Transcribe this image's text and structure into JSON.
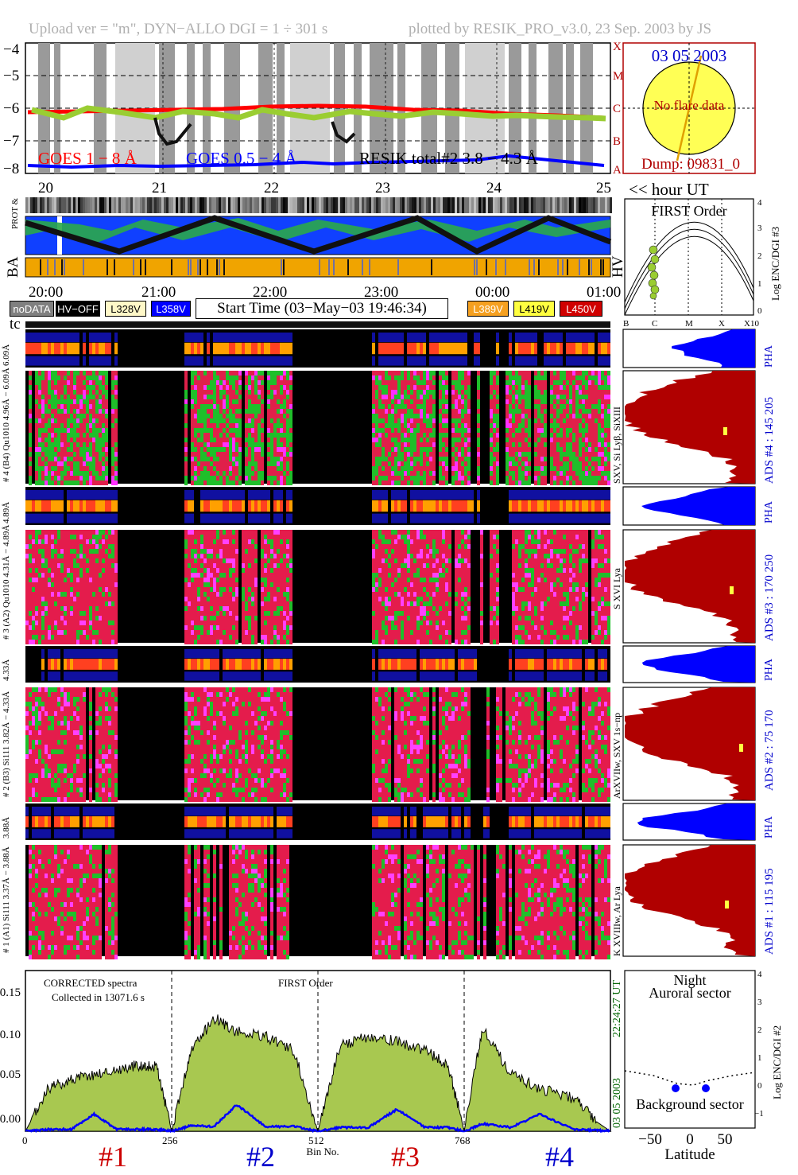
{
  "header": {
    "left": "Upload ver = \"m\", DYN−ALLO DGI =   1 ÷ 301 s",
    "right": "plotted by RESIK_PRO_v3.0, 23 Sep. 2003 by JS"
  },
  "goes_panel": {
    "y_ticks": [
      "−4",
      "−5",
      "−6",
      "−7",
      "−8"
    ],
    "class_letters": [
      "X",
      "M",
      "C",
      "B",
      "A"
    ],
    "legend_goes1": "GOES 1 − 8 Å",
    "legend_goes05": "GOES 0.5 − 4 Å",
    "legend_resik": "RESIK total#2  3.8 − 4.3 Å",
    "colors": {
      "goes1": "#ff0000",
      "goes05": "#0000ff",
      "resik": "#9acd32"
    }
  },
  "sun_panel": {
    "date": "03 05 2003",
    "flare": "No flare data",
    "dump": "Dump: 09831_0"
  },
  "orbit_panel": {
    "hour_ticks": [
      "20",
      "21",
      "22",
      "23",
      "24",
      "25"
    ],
    "hour_label": "<< hour UT",
    "labels": [
      "PROT & EL",
      "BA",
      "HV"
    ]
  },
  "time_axis": {
    "ticks": [
      "20:00",
      "21:00",
      "22:00",
      "23:00",
      "00:00",
      "01:00"
    ],
    "start_time": "Start Time (03−May−03 19:46:34)"
  },
  "legend_boxes": [
    {
      "label": "noDATA",
      "bg": "#808080",
      "fg": "#ffffff"
    },
    {
      "label": "HV−OFF",
      "bg": "#000000",
      "fg": "#ffffff"
    },
    {
      "label": "L328V",
      "bg": "#fff8c8",
      "fg": "#000000"
    },
    {
      "label": "L358V",
      "bg": "#0000ff",
      "fg": "#ffffff"
    },
    {
      "label": "L389V",
      "bg": "#f5a020",
      "fg": "#ffffff"
    },
    {
      "label": "L419V",
      "bg": "#ffff40",
      "fg": "#000000"
    },
    {
      "label": "L450V",
      "bg": "#d00000",
      "fg": "#ffffff"
    }
  ],
  "first_order_panel": {
    "title": "FIRST Order",
    "y_ticks": [
      "4",
      "3",
      "2",
      "1",
      "0"
    ],
    "x_ticks": [
      "B",
      "C",
      "M",
      "X",
      "X10"
    ],
    "ylabel": "Log ENC/DGI #3"
  },
  "spectrogram": {
    "tc_label": "tc",
    "channels": [
      {
        "pha_label": "6.09Å",
        "main_label": "# 4 (B4) Qu1010 4.96Å − 6.09Å",
        "line_label": "SXV, Si Lyβ, SiXIII",
        "ads": "ADS #4 :   145 205",
        "pha": "PHA"
      },
      {
        "pha_label": "4.89Å",
        "main_label": "# 3 (A2) Qu1010 4.31Å − 4.89Å",
        "line_label": "S XVI Lya",
        "ads": "ADS #3 :   170 250",
        "pha": "PHA"
      },
      {
        "pha_label": "4.33Å",
        "main_label": "# 2 (B3) Si111 3.82Å − 4.33Å",
        "line_label": "ArXVIIw, SXV 1s−np",
        "ads": "ADS #2 :   75 170",
        "pha": "PHA"
      },
      {
        "pha_label": "3.88Å",
        "main_label": "# 1 (A1) Si111 3.37Å − 3.88Å",
        "line_label": "K XVIIIw, Ar Lya",
        "ads": "ADS #1 :   115 195",
        "pha": "PHA"
      }
    ]
  },
  "spectra_panel": {
    "note1": "CORRECTED spectra",
    "note2": "Collected in 13071.6 s",
    "order": "FIRST Order",
    "utc": "22:24:27 UT",
    "date": "03 05 2003",
    "xlabel": "Bin No.",
    "x_ticks": [
      "0",
      "256",
      "512",
      "768"
    ],
    "y_ticks": [
      "0.00",
      "0.05",
      "0.10",
      "0.15"
    ],
    "channel_marks": [
      {
        "label": "#1",
        "color": "#cc0000"
      },
      {
        "label": "#2",
        "color": "#0000cc"
      },
      {
        "label": "#3",
        "color": "#cc0000"
      },
      {
        "label": "#4",
        "color": "#0000cc"
      }
    ]
  },
  "latitude_panel": {
    "title1": "Night",
    "title2": "Auroral sector",
    "bottom": "Background sector",
    "xlabel": "Latitude",
    "x_ticks": [
      "−50",
      "0",
      "50"
    ],
    "y_ticks": [
      "4",
      "3",
      "2",
      "1",
      "0",
      "−1"
    ],
    "ylabel": "Log ENC/DGI #2"
  },
  "chart_data": {
    "type": "line",
    "title": "",
    "xlabel": "Bin No.",
    "ylabel": "",
    "xlim": [
      0,
      1024
    ],
    "ylim": [
      0,
      0.17
    ],
    "x": [
      0,
      40,
      80,
      120,
      160,
      200,
      230,
      256,
      290,
      330,
      370,
      420,
      470,
      512,
      550,
      600,
      650,
      700,
      740,
      768,
      800,
      850,
      900,
      960,
      1000,
      1024
    ],
    "series": [
      {
        "name": "",
        "values": [
          0.0,
          0.045,
          0.055,
          0.06,
          0.065,
          0.07,
          0.068,
          0.0,
          0.085,
          0.12,
          0.105,
          0.1,
          0.085,
          0.0,
          0.09,
          0.1,
          0.095,
          0.085,
          0.07,
          0.0,
          0.11,
          0.06,
          0.045,
          0.035,
          0.01,
          0.0
        ]
      },
      {
        "name": "",
        "values": [
          0.0,
          0.002,
          0.002,
          0.018,
          0.002,
          0.002,
          0.002,
          0.0,
          0.006,
          0.005,
          0.028,
          0.005,
          0.005,
          0.0,
          0.004,
          0.004,
          0.023,
          0.004,
          0.004,
          0.0,
          0.008,
          0.004,
          0.018,
          0.002,
          0.001,
          0.0
        ]
      }
    ]
  }
}
